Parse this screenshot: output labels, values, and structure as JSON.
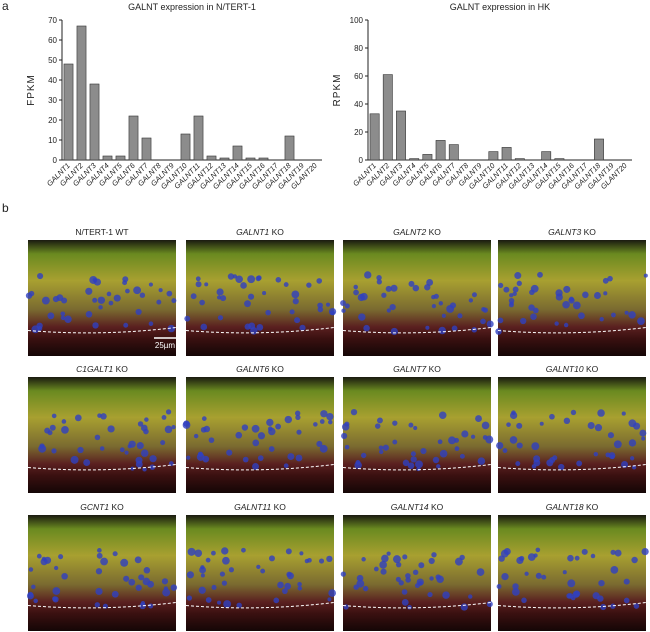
{
  "panel_a_label": "a",
  "panel_b_label": "b",
  "chart_data": [
    {
      "type": "bar",
      "title": "GALNT expression in N/TERT-1",
      "y_label": "FPKM",
      "color": "#8c8c8c",
      "categories": [
        "GALNT1",
        "GALNT2",
        "GALNT3",
        "GALNT4",
        "GALNT5",
        "GALNT6",
        "GALNT7",
        "GALNT8",
        "GALNT9",
        "GALNT10",
        "GALNT11",
        "GALNT12",
        "GALNT13",
        "GALNT14",
        "GALNT15",
        "GALNT16",
        "GALNT17",
        "GALNT18",
        "GALNT19",
        "GLANT20"
      ],
      "values": [
        48,
        67,
        38,
        2,
        2,
        22,
        11,
        0,
        0,
        13,
        22,
        2,
        1,
        7,
        1,
        1,
        0,
        12,
        0,
        0
      ],
      "ylim": [
        0,
        70
      ],
      "yticks": [
        0,
        10,
        20,
        30,
        40,
        50,
        60,
        70
      ]
    },
    {
      "type": "bar",
      "title": "GALNT expression in HK",
      "y_label": "RPKM",
      "color": "#8c8c8c",
      "categories": [
        "GALNT1",
        "GALNT2",
        "GALNT3",
        "GALNT4",
        "GALNT5",
        "GALNT6",
        "GALNT7",
        "GALNT8",
        "GALNT9",
        "GALNT10",
        "GALNT11",
        "GALNT12",
        "GALNT13",
        "GALNT14",
        "GALNT15",
        "GALNT16",
        "GALNT17",
        "GALNT18",
        "GALNT19",
        "GLANT20"
      ],
      "values": [
        33,
        61,
        35,
        1,
        4,
        14,
        11,
        0,
        0,
        6,
        9,
        1,
        0,
        6,
        1,
        0,
        0,
        15,
        0,
        0
      ],
      "ylim": [
        0,
        100
      ],
      "yticks": [
        0,
        20,
        40,
        60,
        80,
        100
      ]
    }
  ],
  "images": [
    {
      "label": "N/TERT-1 WT"
    },
    {
      "gene": "GALNT1",
      "suffix": "KO"
    },
    {
      "gene": "GALNT2",
      "suffix": "KO"
    },
    {
      "gene": "GALNT3",
      "suffix": "KO"
    },
    {
      "gene": "C1GALT1",
      "suffix": "KO"
    },
    {
      "gene": "GALNT6",
      "suffix": "KO"
    },
    {
      "gene": "GALNT7",
      "suffix": "KO"
    },
    {
      "gene": "GALNT10",
      "suffix": "KO"
    },
    {
      "gene": "GCNT1",
      "suffix": "KO"
    },
    {
      "gene": "GALNT11",
      "suffix": "KO"
    },
    {
      "gene": "GALNT14",
      "suffix": "KO"
    },
    {
      "gene": "GALNT18",
      "suffix": "KO"
    }
  ],
  "scale_bar": "25µm"
}
